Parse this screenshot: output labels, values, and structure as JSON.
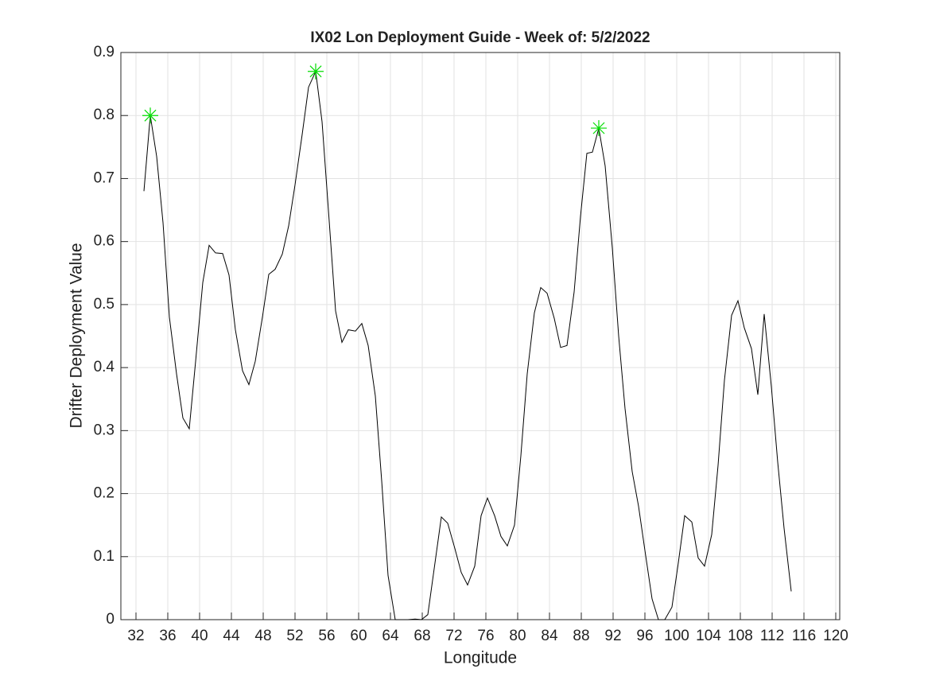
{
  "chart_data": {
    "type": "line",
    "title": "IX02 Lon Deployment Guide - Week of: 5/2/2022",
    "xlabel": "Longitude",
    "ylabel": "Drifter Deployment Value",
    "xlim": [
      30.1,
      120.5
    ],
    "ylim": [
      0,
      0.9
    ],
    "xticks": [
      32,
      36,
      40,
      44,
      48,
      52,
      56,
      60,
      64,
      68,
      72,
      76,
      80,
      84,
      88,
      92,
      96,
      100,
      104,
      108,
      112,
      116,
      120
    ],
    "yticks": [
      0,
      0.1,
      0.2,
      0.3,
      0.4,
      0.5,
      0.6,
      0.7,
      0.8,
      0.9
    ],
    "grid": true,
    "series": [
      {
        "color": "#000000",
        "marker": "none",
        "x": [
          33.0,
          33.8,
          34.6,
          35.4,
          36.2,
          37.1,
          37.9,
          38.7,
          39.5,
          40.4,
          41.2,
          42.0,
          42.9,
          43.7,
          44.5,
          45.4,
          46.2,
          47.0,
          47.9,
          48.7,
          49.5,
          50.4,
          51.2,
          52.0,
          52.9,
          53.7,
          54.6,
          55.4,
          56.2,
          57.1,
          57.9,
          58.7,
          59.6,
          60.4,
          61.2,
          62.1,
          62.9,
          63.7,
          64.6,
          65.4,
          66.2,
          67.1,
          67.9,
          68.7,
          69.6,
          70.4,
          71.2,
          72.1,
          72.9,
          73.7,
          74.6,
          75.4,
          76.2,
          77.1,
          77.9,
          78.7,
          79.6,
          80.4,
          81.2,
          82.1,
          82.9,
          83.7,
          84.6,
          85.4,
          86.2,
          87.1,
          87.9,
          88.7,
          89.4,
          90.2,
          91.0,
          91.9,
          92.7,
          93.5,
          94.4,
          95.2,
          96.0,
          96.9,
          97.7,
          98.5,
          99.4,
          100.2,
          101.0,
          101.9,
          102.7,
          103.5,
          104.4,
          105.2,
          106.0,
          106.9,
          107.7,
          108.5,
          109.4,
          110.2,
          111.0,
          111.9,
          112.7,
          113.5,
          114.4
        ],
        "values": [
          0.68,
          0.8,
          0.735,
          0.63,
          0.48,
          0.39,
          0.32,
          0.303,
          0.41,
          0.535,
          0.594,
          0.582,
          0.581,
          0.547,
          0.46,
          0.395,
          0.373,
          0.41,
          0.48,
          0.548,
          0.556,
          0.58,
          0.625,
          0.69,
          0.77,
          0.845,
          0.87,
          0.79,
          0.65,
          0.49,
          0.44,
          0.46,
          0.458,
          0.47,
          0.435,
          0.355,
          0.22,
          0.07,
          0,
          0,
          0,
          0.001,
          0,
          0.008,
          0.09,
          0.163,
          0.153,
          0.113,
          0.075,
          0.055,
          0.085,
          0.165,
          0.193,
          0.165,
          0.132,
          0.117,
          0.15,
          0.26,
          0.39,
          0.487,
          0.527,
          0.518,
          0.478,
          0.432,
          0.435,
          0.52,
          0.64,
          0.74,
          0.742,
          0.78,
          0.72,
          0.59,
          0.45,
          0.335,
          0.235,
          0.18,
          0.11,
          0.033,
          0,
          0,
          0.02,
          0.09,
          0.165,
          0.155,
          0.098,
          0.085,
          0.135,
          0.245,
          0.38,
          0.483,
          0.506,
          0.463,
          0.43,
          0.357,
          0.485,
          0.37,
          0.25,
          0.145,
          0.045
        ]
      },
      {
        "color": "#00dd00",
        "marker": "star",
        "x": [
          33.8,
          54.6,
          90.2
        ],
        "values": [
          0.8,
          0.87,
          0.78
        ]
      }
    ]
  }
}
